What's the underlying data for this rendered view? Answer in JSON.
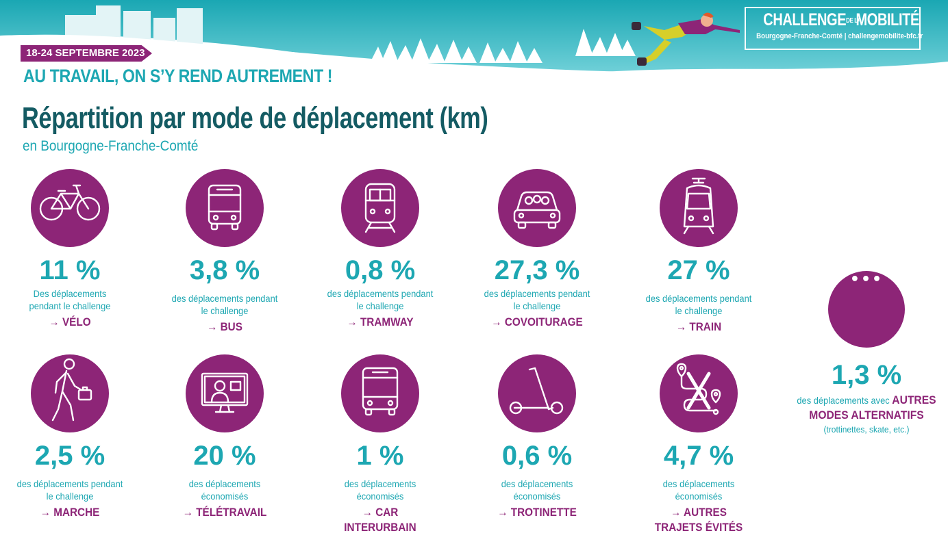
{
  "header": {
    "dates": "18-24 SEPTEMBRE 2023",
    "tagline": "AU TRAVAIL, ON S’Y REND AUTREMENT !",
    "logo": {
      "title_part1": "CHALLENGE",
      "title_small": "DE LA",
      "title_part2": "MOBILITÉ",
      "region": "Bourgogne-Franche-Comté",
      "site": "challengemobilite-bfc.fr"
    }
  },
  "title": "Répartition par mode de déplacement (km)",
  "subtitle": "en Bourgogne-Franche-Comté",
  "stats": [
    {
      "icon": "bicycle-icon",
      "percent": "11 %",
      "desc": "Des déplacements pendant le challenge",
      "mode": "VÉLO"
    },
    {
      "icon": "bus-icon",
      "percent": "3,8 %",
      "desc": "des déplacements pendant le challenge",
      "mode": "BUS"
    },
    {
      "icon": "tram-icon",
      "percent": "0,8 %",
      "desc": "des déplacements pendant le challenge",
      "mode": "TRAMWAY"
    },
    {
      "icon": "carpool-icon",
      "percent": "27,3 %",
      "desc": "des déplacements pendant le challenge",
      "mode": "COVOITURAGE"
    },
    {
      "icon": "train-icon",
      "percent": "27 %",
      "desc": "des déplacements pendant le challenge",
      "mode": "TRAIN"
    },
    {
      "icon": "walker-icon",
      "percent": "2,5 %",
      "desc": "des déplacements pendant le challenge",
      "mode": "MARCHE"
    },
    {
      "icon": "telework-icon",
      "percent": "20 %",
      "desc": "des déplacements économisés",
      "mode": "TÉLÉTRAVAIL"
    },
    {
      "icon": "coach-icon",
      "percent": "1 %",
      "desc": "des déplacements économisés",
      "mode": "CAR",
      "mode2": "INTERURBAIN"
    },
    {
      "icon": "scooter-icon",
      "percent": "0,6 %",
      "desc": "des déplacements économisés",
      "mode": "TROTINETTE"
    },
    {
      "icon": "avoided-trips-icon",
      "percent": "4,7 %",
      "desc": "des déplacements économisés",
      "mode": "AUTRES",
      "mode2": "TRAJETS ÉVITÉS"
    }
  ],
  "other": {
    "icon_text": "•••",
    "percent": "1,3 %",
    "desc_prefix": "des déplacements avec",
    "highlight1": "AUTRES",
    "highlight2": "MODES ALTERNATIFS",
    "note": "(trottinettes, skate, etc.)"
  },
  "arrow": "→",
  "colors": {
    "accent_purple": "#8d2577",
    "accent_teal": "#1da7b2",
    "title_teal": "#145b63"
  }
}
